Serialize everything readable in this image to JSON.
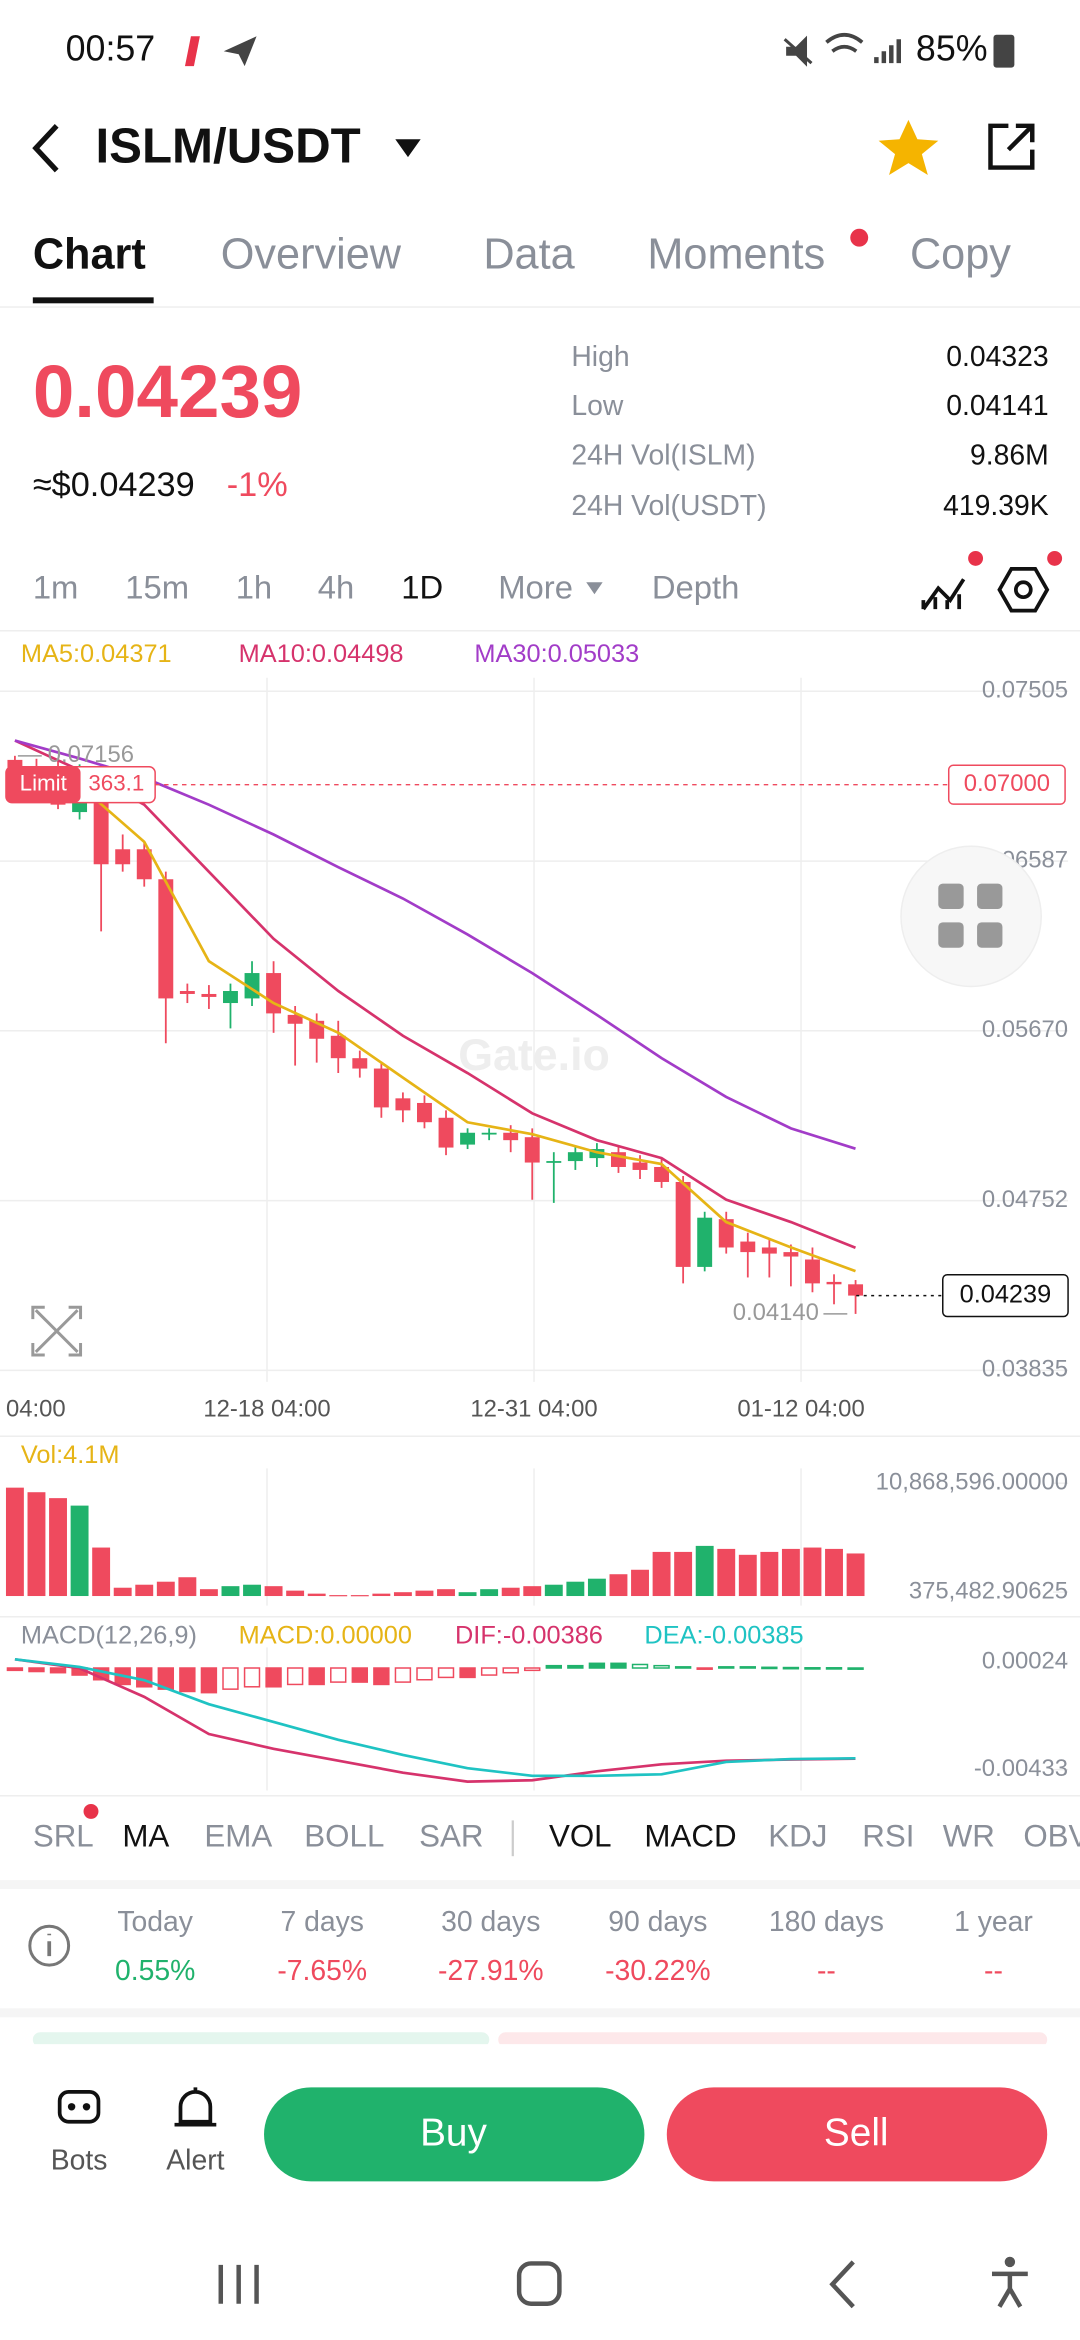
{
  "status_bar": {
    "time": "00:57",
    "battery": "85%"
  },
  "header": {
    "pair": "ISLM/USDT"
  },
  "tabs": [
    "Chart",
    "Overview",
    "Data",
    "Moments",
    "Copy"
  ],
  "price": {
    "last": "0.04239",
    "usd": "≈$0.04239",
    "change": "-1%"
  },
  "stats": [
    {
      "label": "High",
      "value": "0.04323"
    },
    {
      "label": "Low",
      "value": "0.04141"
    },
    {
      "label": "24H Vol(ISLM)",
      "value": "9.86M"
    },
    {
      "label": "24H Vol(USDT)",
      "value": "419.39K"
    }
  ],
  "intervals": [
    "1m",
    "15m",
    "1h",
    "4h",
    "1D",
    "More",
    "Depth"
  ],
  "indicators": [
    "SRL",
    "MA",
    "EMA",
    "BOLL",
    "SAR",
    "VOL",
    "MACD",
    "KDJ",
    "RSI",
    "WR",
    "OBV"
  ],
  "performance": [
    {
      "period": "Today",
      "change": "0.55%"
    },
    {
      "period": "7 days",
      "change": "-7.65%"
    },
    {
      "period": "30 days",
      "change": "-27.91%"
    },
    {
      "period": "90 days",
      "change": "-30.22%"
    },
    {
      "period": "180 days",
      "change": "--"
    },
    {
      "period": "1 year",
      "change": "--"
    }
  ],
  "actions": {
    "bots": "Bots",
    "alert": "Alert",
    "buy": "Buy",
    "sell": "Sell"
  },
  "chart_data": [
    {
      "type": "candlestick",
      "watermark": "Gate.io",
      "up_color": "#20b26c",
      "down_color": "#ef4a5e",
      "date_labels": [
        "04:00",
        "12-18 04:00",
        "12-31 04:00",
        "01-12 04:00"
      ],
      "open": [
        0.07134,
        0.07094,
        0.07013,
        0.06852,
        0.06973,
        0.06651,
        0.06651,
        0.06489,
        0.05885,
        0.05869,
        0.0582,
        0.05845,
        0.05982,
        0.05756,
        0.05724,
        0.05643,
        0.05522,
        0.05466,
        0.05305,
        0.0528,
        0.052,
        0.05055,
        0.05111,
        0.05119,
        0.05095,
        0.04958,
        0.04966,
        0.04982,
        0.05014,
        0.04958,
        0.04934,
        0.04853,
        0.04394,
        0.04652,
        0.04531,
        0.04499,
        0.04474,
        0.04434,
        0.04313,
        0.043
      ],
      "high": [
        0.07156,
        0.0714,
        0.07134,
        0.0711,
        0.07054,
        0.06731,
        0.06691,
        0.0653,
        0.05925,
        0.05917,
        0.05925,
        0.06046,
        0.06046,
        0.05804,
        0.05764,
        0.05724,
        0.05563,
        0.05498,
        0.05337,
        0.05321,
        0.0524,
        0.05143,
        0.05143,
        0.0516,
        0.05143,
        0.05014,
        0.05047,
        0.05063,
        0.05047,
        0.04998,
        0.04982,
        0.04885,
        0.04692,
        0.04692,
        0.04579,
        0.04547,
        0.04515,
        0.04499,
        0.04354,
        0.04323
      ],
      "low": [
        0.06933,
        0.06933,
        0.06868,
        0.06812,
        0.06207,
        0.0653,
        0.06449,
        0.05603,
        0.0582,
        0.05788,
        0.05683,
        0.05804,
        0.05659,
        0.05482,
        0.05498,
        0.05442,
        0.05417,
        0.052,
        0.05176,
        0.05143,
        0.04998,
        0.05031,
        0.05079,
        0.05014,
        0.04757,
        0.0474,
        0.04918,
        0.04934,
        0.04902,
        0.04869,
        0.04821,
        0.04305,
        0.0437,
        0.04466,
        0.04337,
        0.04337,
        0.04289,
        0.04257,
        0.04192,
        0.0414
      ],
      "close": [
        0.07054,
        0.06997,
        0.06892,
        0.07054,
        0.0657,
        0.0657,
        0.06489,
        0.05845,
        0.05869,
        0.05853,
        0.05885,
        0.05982,
        0.05764,
        0.05708,
        0.05627,
        0.05522,
        0.05466,
        0.05256,
        0.0524,
        0.05176,
        0.05039,
        0.05119,
        0.05119,
        0.05079,
        0.04958,
        0.04966,
        0.05014,
        0.05031,
        0.04934,
        0.04918,
        0.04853,
        0.04394,
        0.0466,
        0.04499,
        0.04474,
        0.04466,
        0.0445,
        0.04305,
        0.043,
        0.04239
      ],
      "series": [
        {
          "name": "MA5:0.04371",
          "color": "#e6b416",
          "x": [
            0,
            3,
            6,
            9,
            12,
            15,
            18,
            21,
            24,
            27,
            30,
            33,
            36,
            39
          ],
          "values": [
            0.06949,
            0.06997,
            0.06691,
            0.06046,
            0.0582,
            0.05659,
            0.05417,
            0.05176,
            0.05111,
            0.05014,
            0.0495,
            0.04636,
            0.04499,
            0.04371
          ]
        },
        {
          "name": "MA10:0.04498",
          "color": "#d6336c",
          "x": [
            0,
            3,
            6,
            9,
            12,
            15,
            18,
            21,
            24,
            27,
            30,
            33,
            36,
            39
          ],
          "values": [
            0.07239,
            0.07078,
            0.06892,
            0.0653,
            0.06167,
            0.05885,
            0.05643,
            0.05442,
            0.05224,
            0.05079,
            0.04982,
            0.04757,
            0.04636,
            0.04498
          ]
        },
        {
          "name": "MA30:0.05033",
          "color": "#a23cc8",
          "x": [
            0,
            3,
            6,
            9,
            12,
            15,
            18,
            21,
            24,
            27,
            30,
            33,
            36,
            39
          ],
          "values": [
            0.07239,
            0.07142,
            0.07037,
            0.06892,
            0.06731,
            0.06554,
            0.06385,
            0.06191,
            0.05982,
            0.05756,
            0.05522,
            0.05313,
            0.05143,
            0.05033
          ]
        }
      ],
      "ylim": [
        0.03773,
        0.07578
      ],
      "yticks": [
        0.07505,
        0.06587,
        {
          "value": 0.0567,
          "label": "0.05670"
        },
        0.04752,
        0.03835
      ],
      "max_marker": 0.07156,
      "min_marker": {
        "value": 0.0414,
        "label": "0.04140"
      },
      "limit_order": {
        "label": "Limit",
        "amount": 363.1,
        "price": {
          "value": 0.07,
          "label": "0.07000"
        }
      },
      "last_price": 0.04239,
      "grid": true
    },
    {
      "type": "bar",
      "legend": "Vol:4.1M",
      "values": [
        10440000,
        10000000,
        9430000,
        8710000,
        4670000,
        800000,
        1090000,
        1380000,
        1810000,
        660000,
        950000,
        1090000,
        950000,
        520000,
        230000,
        90000,
        90000,
        230000,
        370000,
        520000,
        660000,
        370000,
        660000,
        800000,
        950000,
        1090000,
        1380000,
        1670000,
        2100000,
        2530000,
        4250000,
        4250000,
        4830000,
        4540000,
        3970000,
        4250000,
        4540000,
        4670000,
        4540000,
        4100000
      ],
      "ylim": [
        -920000,
        12300000
      ],
      "yticks": [
        {
          "value": 10868596,
          "label": "10,868,596.00000"
        },
        {
          "value": 375482.90625,
          "label": "375,482.90625"
        }
      ]
    },
    {
      "type": "macd",
      "legend": "MACD(12,26,9)",
      "histogram_name": "MACD:0.00000",
      "histogram": [
        -0.0001,
        -0.00015,
        -0.0002,
        -0.0003,
        -0.0005,
        -0.0007,
        -0.0008,
        -0.0009,
        -0.001,
        -0.00105,
        -0.0009,
        -0.0008,
        -0.0008,
        -0.0007,
        -0.0007,
        -0.0006,
        -0.0006,
        -0.0007,
        -0.0006,
        -0.0005,
        -0.0004,
        -0.0004,
        -0.0003,
        -0.0002,
        -0.0001,
        0.0001,
        0.0001,
        0.0002,
        0.0002,
        0.00015,
        0.0001,
        5e-05,
        -5e-05,
        5e-05,
        5e-05,
        3e-05,
        2e-05,
        1e-05,
        1e-05,
        0
      ],
      "series": [
        {
          "name": "DIF:-0.00386",
          "color": "#d6336c",
          "x": [
            0,
            3,
            6,
            9,
            12,
            15,
            18,
            21,
            24,
            27,
            30,
            33,
            36,
            39
          ],
          "values": [
            0.00037,
            -1e-05,
            -0.00123,
            -0.00281,
            -0.00344,
            -0.00395,
            -0.00446,
            -0.00484,
            -0.00478,
            -0.0044,
            -0.0041,
            -0.00395,
            -0.0039,
            -0.00386
          ]
        },
        {
          "name": "DEA:-0.00385",
          "color": "#1fc3c3",
          "x": [
            0,
            3,
            6,
            9,
            12,
            15,
            18,
            21,
            24,
            27,
            30,
            33,
            36,
            39
          ],
          "values": [
            0.00037,
            5e-05,
            -0.00052,
            -0.00154,
            -0.0023,
            -0.00306,
            -0.0037,
            -0.00427,
            -0.00459,
            -0.00459,
            -0.00453,
            -0.004,
            -0.00388,
            -0.00385
          ]
        }
      ],
      "ylim": [
        -0.00522,
        0.00088
      ],
      "yticks": [
        0.00024,
        -0.00433
      ]
    }
  ]
}
